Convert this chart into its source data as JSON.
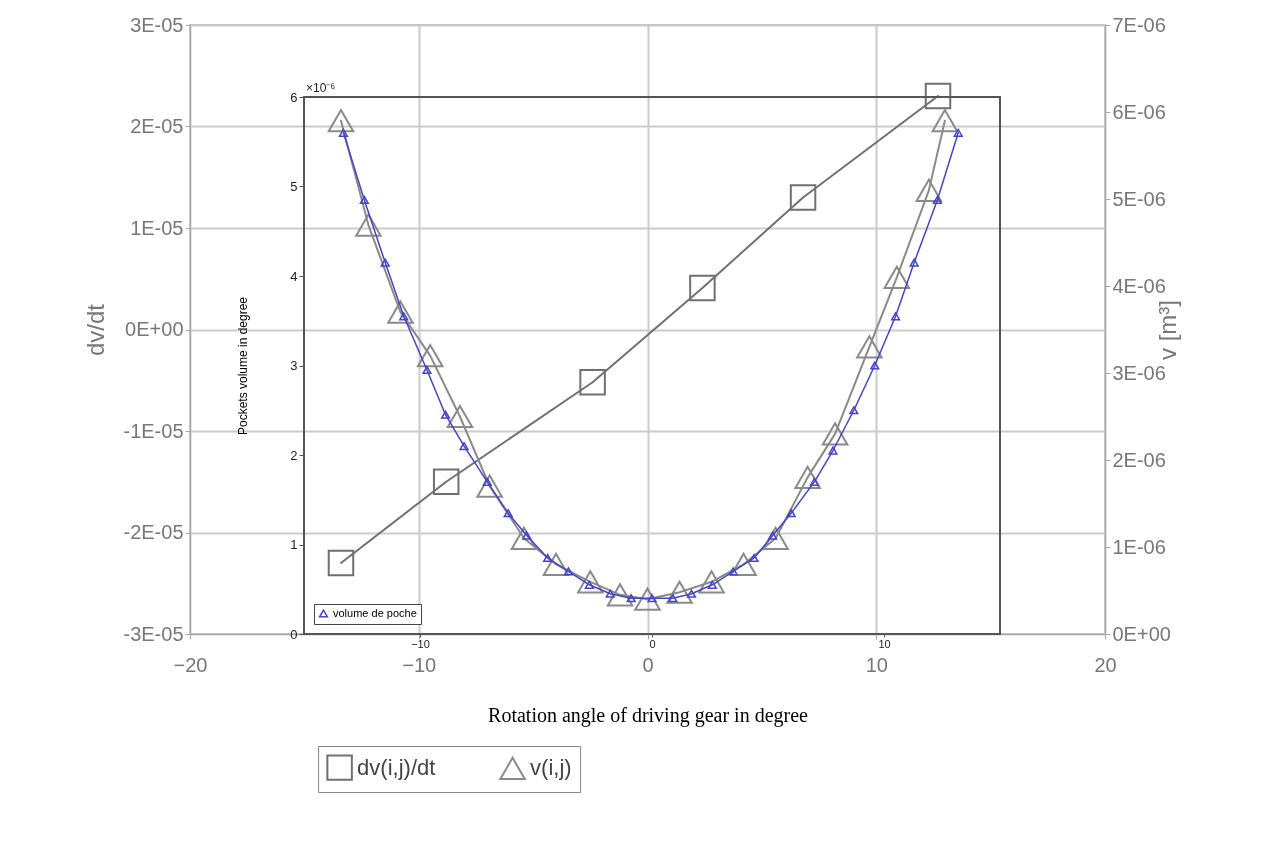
{
  "chart_data": [
    {
      "type": "line",
      "xlabel": "Rotation angle of driving gear in degree",
      "ylabel": "dv/dt",
      "y2label": "v [m³]",
      "xlim": [
        -20,
        20
      ],
      "xticks": [
        -20,
        -10,
        0,
        10,
        20
      ],
      "ylim": [
        -3e-05,
        3e-05
      ],
      "yticks": [
        {
          "value": -3e-05,
          "label": "-3E-05"
        },
        {
          "value": -2e-05,
          "label": "-2E-05"
        },
        {
          "value": -1e-05,
          "label": "-1E-05"
        },
        {
          "value": 0,
          "label": "0E+00"
        },
        {
          "value": 1e-05,
          "label": "1E-05"
        },
        {
          "value": 2e-05,
          "label": "2E-05"
        },
        {
          "value": 3e-05,
          "label": "3E-05"
        }
      ],
      "y2lim": [
        0,
        7e-06
      ],
      "y2ticks": [
        {
          "value": 0,
          "label": "0E+00"
        },
        {
          "value": 1e-06,
          "label": "1E-06"
        },
        {
          "value": 2e-06,
          "label": "2E-06"
        },
        {
          "value": 3e-06,
          "label": "3E-06"
        },
        {
          "value": 4e-06,
          "label": "4E-06"
        },
        {
          "value": 5e-06,
          "label": "5E-06"
        },
        {
          "value": 6e-06,
          "label": "6E-06"
        },
        {
          "value": 7e-06,
          "label": "7E-06"
        }
      ],
      "grid": true,
      "legend": "bottom",
      "series": [
        {
          "name": "dv(i,j)/dt",
          "color": "#707070",
          "marker": "square",
          "x": [
            -13.4,
            -8.8,
            -2.4,
            2.4,
            6.8,
            12.7
          ],
          "values": [
            -2.3e-05,
            -1.5e-05,
            -5.2e-06,
            4.1e-06,
            1.3e-05,
            2.3e-05
          ]
        },
        {
          "name": "v(i,j)",
          "color": "#8a8a8a",
          "marker": "triangle",
          "axis": "y2",
          "x": [
            -13.4,
            -12.2,
            -10.8,
            -9.5,
            -8.2,
            -6.9,
            -5.4,
            -4.0,
            -2.5,
            -1.2,
            0,
            1.4,
            2.8,
            4.2,
            5.6,
            7.0,
            8.2,
            9.7,
            10.9,
            12.3,
            13.0
          ],
          "values": [
            5.9e-06,
            4.7e-06,
            3.7e-06,
            3.2e-06,
            2.5e-06,
            1.7e-06,
            1.1e-06,
            8e-07,
            6e-07,
            4.5e-07,
            4e-07,
            4.8e-07,
            6e-07,
            8e-07,
            1.1e-06,
            1.8e-06,
            2.3e-06,
            3.3e-06,
            4.1e-06,
            5.1e-06,
            5.9e-06
          ]
        }
      ]
    },
    {
      "type": "line",
      "ylabel": "Pockets volume in degree",
      "xlim": [
        -15,
        15
      ],
      "xticks": [
        -10,
        0,
        10
      ],
      "ylim": [
        0,
        6
      ],
      "yticks": [
        0,
        1,
        2,
        3,
        4,
        5,
        6
      ],
      "annotations": [
        "×10⁻⁶"
      ],
      "legend": "bottom left",
      "series": [
        {
          "name": "volume de poche",
          "color": "#4444cc",
          "marker": "triangle",
          "x": [
            -13.3,
            -12.4,
            -11.5,
            -10.7,
            -9.7,
            -8.9,
            -8.1,
            -7.1,
            -6.2,
            -5.4,
            -4.5,
            -3.6,
            -2.7,
            -1.8,
            -0.9,
            0,
            0.9,
            1.7,
            2.6,
            3.5,
            4.4,
            5.2,
            6.0,
            7.0,
            7.8,
            8.7,
            9.6,
            10.5,
            11.3,
            12.3,
            13.2
          ],
          "values": [
            5.6,
            4.85,
            4.15,
            3.55,
            2.95,
            2.45,
            2.1,
            1.7,
            1.35,
            1.1,
            0.85,
            0.7,
            0.55,
            0.45,
            0.4,
            0.4,
            0.4,
            0.45,
            0.55,
            0.7,
            0.85,
            1.1,
            1.35,
            1.7,
            2.05,
            2.5,
            3.0,
            3.55,
            4.15,
            4.85,
            5.6
          ]
        }
      ]
    }
  ]
}
